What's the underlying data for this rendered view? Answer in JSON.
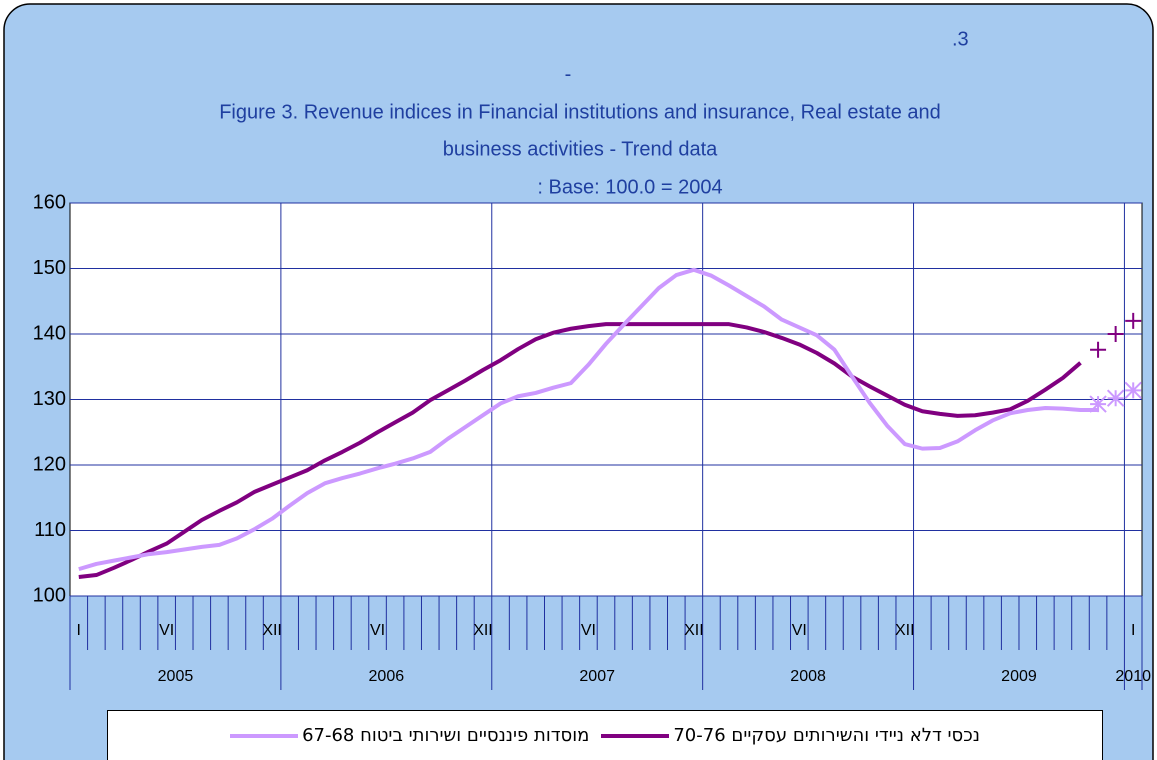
{
  "chart_data": {
    "type": "line",
    "title_lines": [
      ".3",
      "-",
      "Figure 3. Revenue indices in Financial institutions and insurance, Real estate and",
      "business activities - Trend data",
      ": Base: 100.0 = 2004"
    ],
    "categories": [
      "I",
      null,
      null,
      null,
      null,
      "VI",
      null,
      null,
      null,
      null,
      null,
      "XII",
      null,
      null,
      null,
      null,
      null,
      "VI",
      null,
      null,
      null,
      null,
      null,
      "XII",
      null,
      null,
      null,
      null,
      null,
      "VI",
      null,
      null,
      null,
      null,
      null,
      "XII",
      null,
      null,
      null,
      null,
      null,
      "VI",
      null,
      null,
      null,
      null,
      null,
      "XII",
      null,
      null,
      null,
      null,
      null,
      null,
      null,
      null,
      null,
      null,
      null,
      null,
      "I"
    ],
    "years": [
      "2005",
      "2006",
      "2007",
      "2008",
      "2009",
      "2010"
    ],
    "ylim": [
      100,
      160
    ],
    "yticks": [
      100,
      110,
      120,
      130,
      140,
      150,
      160
    ],
    "grid": true,
    "series": [
      {
        "name": "נכסי דלא ניידי והשירותים עסקיים 70-76",
        "color": "#800080",
        "marker": "+",
        "values": [
          102.9,
          103.2,
          104.3,
          105.5,
          106.8,
          108,
          109.8,
          111.6,
          113,
          114.3,
          115.9,
          117,
          118.1,
          119.2,
          120.7,
          122,
          123.4,
          125,
          126.5,
          128,
          129.9,
          131.4,
          132.9,
          134.5,
          136,
          137.7,
          139.2,
          140.2,
          140.8,
          141.2,
          141.5,
          141.5,
          141.5,
          141.5,
          141.5,
          141.5,
          141.5,
          141.5,
          141,
          140.3,
          139.4,
          138.4,
          137.1,
          135.5,
          133.5,
          132,
          130.6,
          129.2,
          128.2,
          127.8,
          127.5,
          127.6,
          128,
          128.5,
          129.8,
          131.5,
          133.3,
          135.6,
          null,
          null,
          null
        ],
        "marker_values": [
          null,
          null,
          null,
          null,
          null,
          null,
          null,
          null,
          null,
          null,
          null,
          null,
          null,
          null,
          null,
          null,
          null,
          null,
          null,
          null,
          null,
          null,
          null,
          null,
          null,
          null,
          null,
          null,
          null,
          null,
          null,
          null,
          null,
          null,
          null,
          null,
          null,
          null,
          null,
          null,
          null,
          null,
          null,
          null,
          null,
          null,
          null,
          null,
          null,
          null,
          null,
          null,
          null,
          null,
          null,
          null,
          null,
          null,
          137.6,
          140,
          142
        ]
      },
      {
        "name": "מוסדות פיננסיים ושירותי ביטוח 67-68",
        "color": "#cc99ff",
        "marker": "*",
        "values": [
          104.1,
          104.9,
          105.4,
          105.9,
          106.4,
          106.7,
          107.1,
          107.5,
          107.8,
          108.8,
          110.2,
          111.8,
          113.8,
          115.7,
          117.2,
          118,
          118.7,
          119.5,
          120.2,
          121,
          122,
          124,
          125.8,
          127.6,
          129.4,
          130.5,
          131,
          131.8,
          132.5,
          135.3,
          138.5,
          141.4,
          144.2,
          147,
          149,
          149.8,
          148.9,
          147.4,
          145.8,
          144.2,
          142.2,
          141,
          139.8,
          137.6,
          133.5,
          129.5,
          126,
          123.2,
          122.5,
          122.6,
          123.6,
          125.3,
          126.8,
          127.9,
          128.4,
          128.7,
          128.6,
          128.4,
          128.4,
          null,
          null
        ],
        "marker_values": [
          null,
          null,
          null,
          null,
          null,
          null,
          null,
          null,
          null,
          null,
          null,
          null,
          null,
          null,
          null,
          null,
          null,
          null,
          null,
          null,
          null,
          null,
          null,
          null,
          null,
          null,
          null,
          null,
          null,
          null,
          null,
          null,
          null,
          null,
          null,
          null,
          null,
          null,
          null,
          null,
          null,
          null,
          null,
          null,
          null,
          null,
          null,
          null,
          null,
          null,
          null,
          null,
          null,
          null,
          null,
          null,
          null,
          null,
          129.3,
          130.2,
          131.4
        ]
      }
    ]
  }
}
